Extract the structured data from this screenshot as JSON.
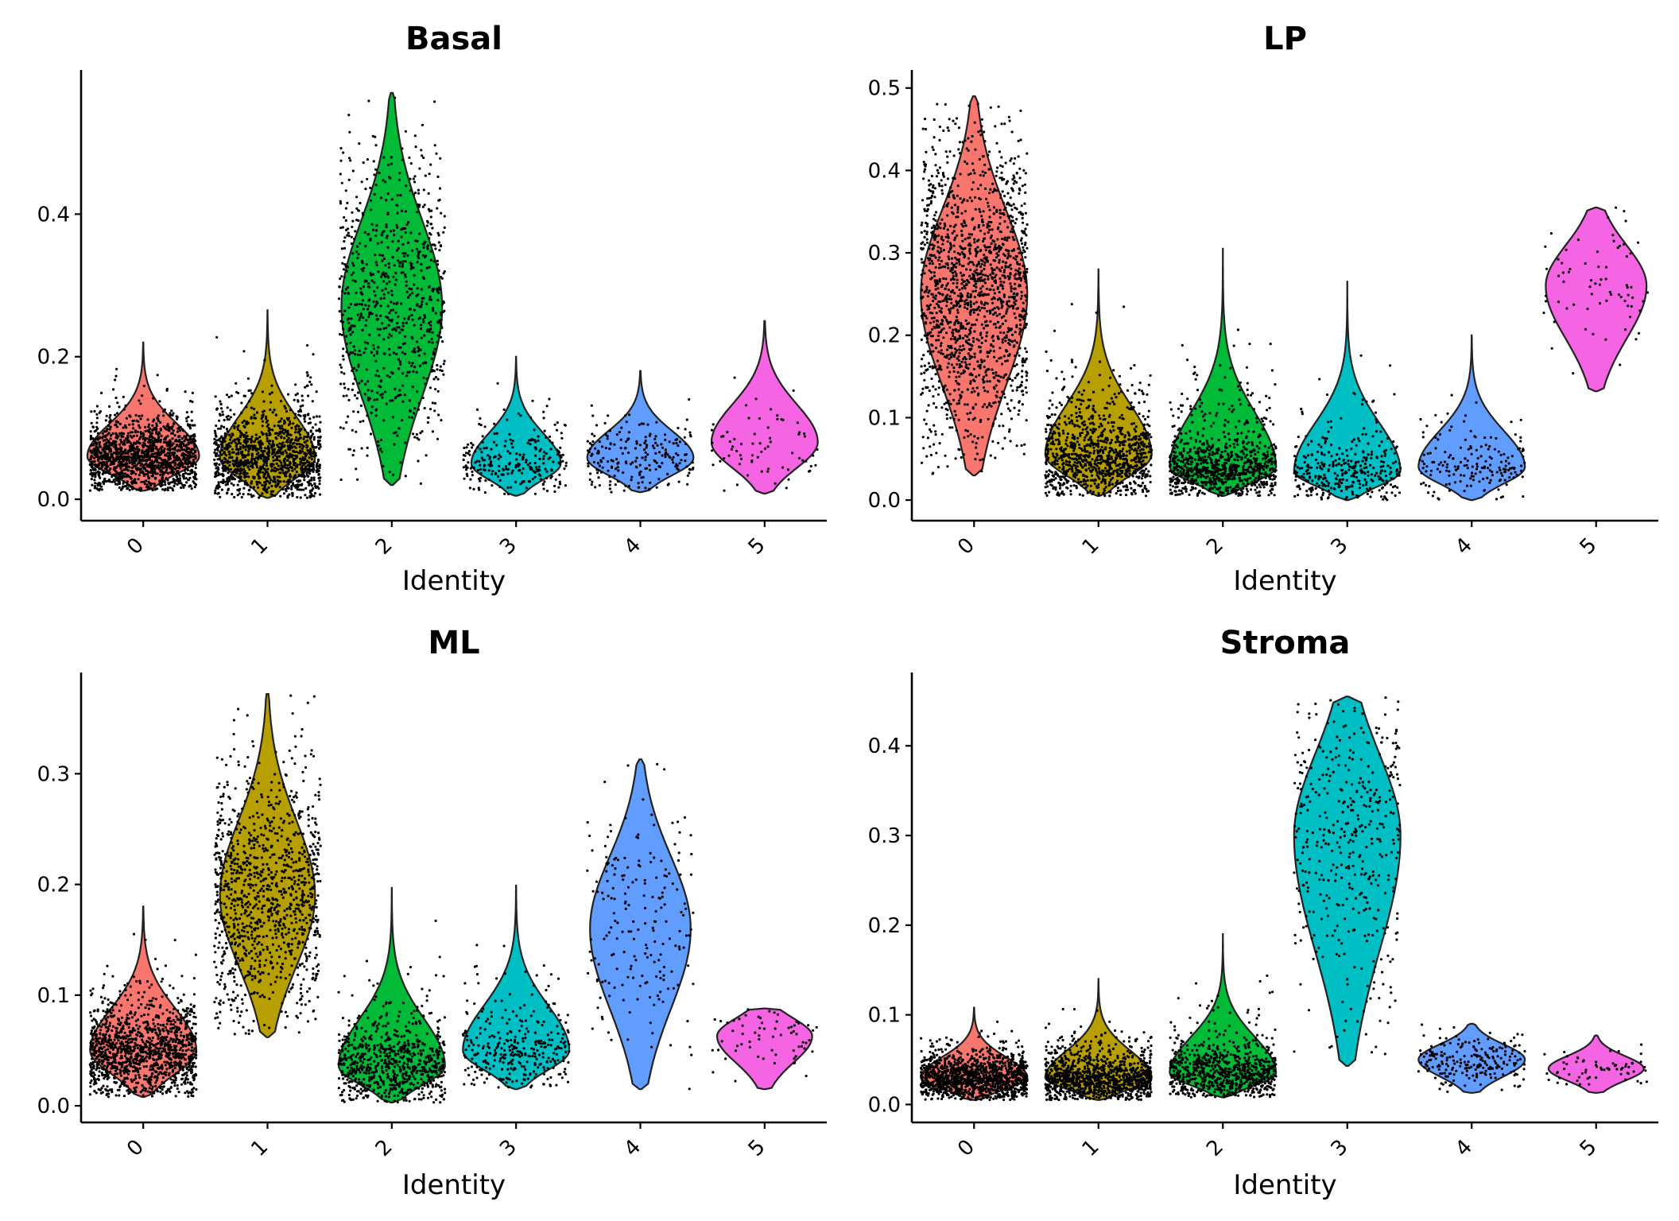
{
  "chart_data": [
    {
      "type": "violin",
      "title": "Basal",
      "xlabel": "Identity",
      "ylabel": "",
      "categories": [
        "0",
        "1",
        "2",
        "3",
        "4",
        "5"
      ],
      "colors": [
        "#F8766D",
        "#B79F00",
        "#00BA38",
        "#00BFC4",
        "#619CFF",
        "#F564E3"
      ],
      "ylim": [
        -0.03,
        0.6
      ],
      "yticks": [
        0.0,
        0.2,
        0.4
      ],
      "yticklabels": [
        "0.0",
        "0.2",
        "0.4"
      ],
      "violins": [
        {
          "category": "0",
          "ymin": 0.012,
          "ymax": 0.22,
          "median": 0.06,
          "width": 1.0,
          "points": 1400
        },
        {
          "category": "1",
          "ymin": 0.002,
          "ymax": 0.265,
          "median": 0.058,
          "width": 0.85,
          "points": 1200
        },
        {
          "category": "2",
          "ymin": 0.02,
          "ymax": 0.57,
          "median": 0.27,
          "width": 0.9,
          "points": 800
        },
        {
          "category": "3",
          "ymin": 0.005,
          "ymax": 0.2,
          "median": 0.05,
          "width": 0.8,
          "points": 260
        },
        {
          "category": "4",
          "ymin": 0.01,
          "ymax": 0.18,
          "median": 0.058,
          "width": 0.95,
          "points": 220
        },
        {
          "category": "5",
          "ymin": 0.008,
          "ymax": 0.25,
          "median": 0.08,
          "width": 0.95,
          "points": 70
        }
      ]
    },
    {
      "type": "violin",
      "title": "LP",
      "xlabel": "Identity",
      "ylabel": "",
      "categories": [
        "0",
        "1",
        "2",
        "3",
        "4",
        "5"
      ],
      "colors": [
        "#F8766D",
        "#B79F00",
        "#00BA38",
        "#00BFC4",
        "#619CFF",
        "#F564E3"
      ],
      "ylim": [
        -0.025,
        0.52
      ],
      "yticks": [
        0.0,
        0.1,
        0.2,
        0.3,
        0.4,
        0.5
      ],
      "yticklabels": [
        "0.0",
        "0.1",
        "0.2",
        "0.3",
        "0.4",
        "0.5"
      ],
      "violins": [
        {
          "category": "0",
          "ymin": 0.03,
          "ymax": 0.49,
          "median": 0.25,
          "width": 0.95,
          "points": 1600
        },
        {
          "category": "1",
          "ymin": 0.005,
          "ymax": 0.28,
          "median": 0.055,
          "width": 0.95,
          "points": 1000
        },
        {
          "category": "2",
          "ymin": 0.005,
          "ymax": 0.305,
          "median": 0.04,
          "width": 0.95,
          "points": 900
        },
        {
          "category": "3",
          "ymin": 0.0,
          "ymax": 0.265,
          "median": 0.035,
          "width": 0.95,
          "points": 350
        },
        {
          "category": "4",
          "ymin": 0.0,
          "ymax": 0.2,
          "median": 0.04,
          "width": 0.95,
          "points": 180
        },
        {
          "category": "5",
          "ymin": 0.132,
          "ymax": 0.355,
          "median": 0.26,
          "width": 0.9,
          "points": 70
        }
      ]
    },
    {
      "type": "violin",
      "title": "ML",
      "xlabel": "Identity",
      "ylabel": "",
      "categories": [
        "0",
        "1",
        "2",
        "3",
        "4",
        "5"
      ],
      "colors": [
        "#F8766D",
        "#B79F00",
        "#00BA38",
        "#00BFC4",
        "#619CFF",
        "#F564E3"
      ],
      "ylim": [
        -0.015,
        0.39
      ],
      "yticks": [
        0.0,
        0.1,
        0.2,
        0.3
      ],
      "yticklabels": [
        "0.0",
        "0.1",
        "0.2",
        "0.3"
      ],
      "violins": [
        {
          "category": "0",
          "ymin": 0.008,
          "ymax": 0.18,
          "median": 0.05,
          "width": 0.95,
          "points": 1300
        },
        {
          "category": "1",
          "ymin": 0.062,
          "ymax": 0.372,
          "median": 0.19,
          "width": 0.85,
          "points": 1100
        },
        {
          "category": "2",
          "ymin": 0.003,
          "ymax": 0.197,
          "median": 0.036,
          "width": 0.95,
          "points": 750
        },
        {
          "category": "3",
          "ymin": 0.015,
          "ymax": 0.199,
          "median": 0.05,
          "width": 0.95,
          "points": 330
        },
        {
          "category": "4",
          "ymin": 0.015,
          "ymax": 0.313,
          "median": 0.16,
          "width": 0.9,
          "points": 200
        },
        {
          "category": "5",
          "ymin": 0.015,
          "ymax": 0.088,
          "median": 0.063,
          "width": 0.85,
          "points": 65
        }
      ]
    },
    {
      "type": "violin",
      "title": "Stroma",
      "xlabel": "Identity",
      "ylabel": "",
      "categories": [
        "0",
        "1",
        "2",
        "3",
        "4",
        "5"
      ],
      "colors": [
        "#F8766D",
        "#B79F00",
        "#00BA38",
        "#00BFC4",
        "#619CFF",
        "#F564E3"
      ],
      "ylim": [
        -0.02,
        0.48
      ],
      "yticks": [
        0.0,
        0.1,
        0.2,
        0.3,
        0.4
      ],
      "yticklabels": [
        "0.0",
        "0.1",
        "0.2",
        "0.3",
        "0.4"
      ],
      "violins": [
        {
          "category": "0",
          "ymin": 0.005,
          "ymax": 0.108,
          "median": 0.03,
          "width": 0.95,
          "points": 1300
        },
        {
          "category": "1",
          "ymin": 0.005,
          "ymax": 0.14,
          "median": 0.03,
          "width": 0.95,
          "points": 1100
        },
        {
          "category": "2",
          "ymin": 0.008,
          "ymax": 0.19,
          "median": 0.035,
          "width": 0.95,
          "points": 800
        },
        {
          "category": "3",
          "ymin": 0.043,
          "ymax": 0.455,
          "median": 0.3,
          "width": 0.95,
          "points": 420
        },
        {
          "category": "4",
          "ymin": 0.013,
          "ymax": 0.09,
          "median": 0.05,
          "width": 0.95,
          "points": 220
        },
        {
          "category": "5",
          "ymin": 0.013,
          "ymax": 0.077,
          "median": 0.04,
          "width": 0.85,
          "points": 65
        }
      ]
    }
  ]
}
